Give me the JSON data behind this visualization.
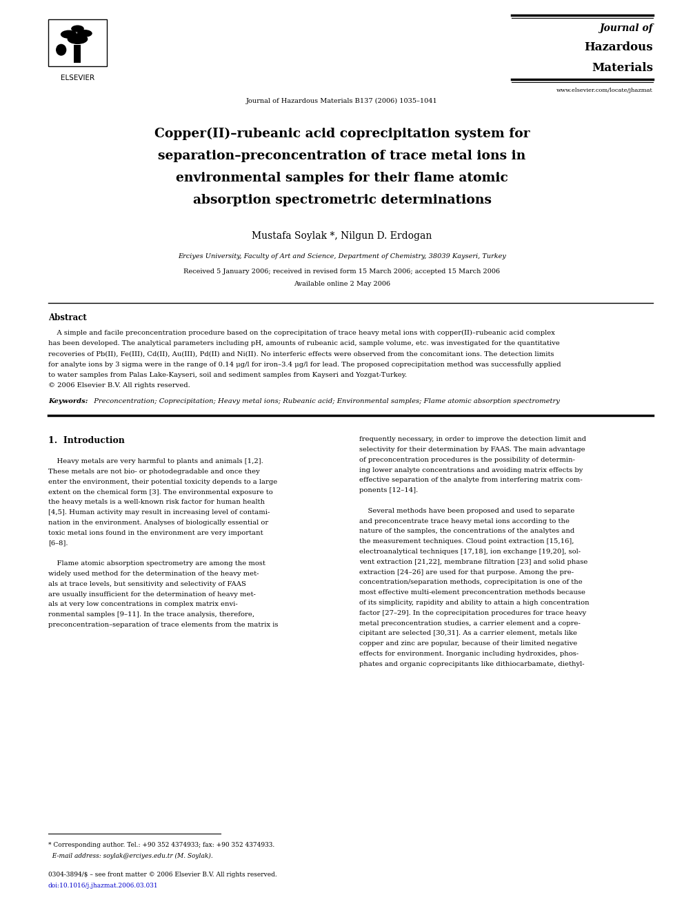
{
  "background_color": "#ffffff",
  "page_width": 9.92,
  "page_height": 13.23,
  "header": {
    "elsevier_text": "ELSEVIER",
    "journal_center_text": "Journal of Hazardous Materials B137 (2006) 1035–1041",
    "journal_right_line1": "Journal of",
    "journal_right_line2": "Hazardous",
    "journal_right_line3": "Materials",
    "journal_right_url": "www.elsevier.com/locate/jhazmat"
  },
  "title_line1": "Copper(II)–rubeanic acid coprecipitation system for",
  "title_line2": "separation–preconcentration of trace metal ions in",
  "title_line3": "environmental samples for their flame atomic",
  "title_line4": "absorption spectrometric determinations",
  "authors": "Mustafa Soylak *, Nilgun D. Erdogan",
  "affiliation": "Erciyes University, Faculty of Art and Science, Department of Chemistry, 38039 Kayseri, Turkey",
  "received": "Received 5 January 2006; received in revised form 15 March 2006; accepted 15 March 2006",
  "available": "Available online 2 May 2006",
  "abstract_heading": "Abstract",
  "abstract_lines": [
    "    A simple and facile preconcentration procedure based on the coprecipitation of trace heavy metal ions with copper(II)–rubeanic acid complex",
    "has been developed. The analytical parameters including pH, amounts of rubeanic acid, sample volume, etc. was investigated for the quantitative",
    "recoveries of Pb(II), Fe(III), Cd(II), Au(III), Pd(II) and Ni(II). No interferic effects were observed from the concomitant ions. The detection limits",
    "for analyte ions by 3 sigma were in the range of 0.14 μg/l for iron–3.4 μg/l for lead. The proposed coprecipitation method was successfully applied",
    "to water samples from Palas Lake-Kayseri, soil and sediment samples from Kayseri and Yozgat-Turkey.",
    "© 2006 Elsevier B.V. All rights reserved."
  ],
  "keywords_label": "Keywords:",
  "keywords_text": "  Preconcentration; Coprecipitation; Heavy metal ions; Rubeanic acid; Environmental samples; Flame atomic absorption spectrometry",
  "section1_heading": "1.  Introduction",
  "left_col_lines": [
    "    Heavy metals are very harmful to plants and animals [1,2].",
    "These metals are not bio- or photodegradable and once they",
    "enter the environment, their potential toxicity depends to a large",
    "extent on the chemical form [3]. The environmental exposure to",
    "the heavy metals is a well-known risk factor for human health",
    "[4,5]. Human activity may result in increasing level of contami-",
    "nation in the environment. Analyses of biologically essential or",
    "toxic metal ions found in the environment are very important",
    "[6–8].",
    "",
    "    Flame atomic absorption spectrometry are among the most",
    "widely used method for the determination of the heavy met-",
    "als at trace levels, but sensitivity and selectivity of FAAS",
    "are usually insufficient for the determination of heavy met-",
    "als at very low concentrations in complex matrix envi-",
    "ronmental samples [9–11]. In the trace analysis, therefore,",
    "preconcentration–separation of trace elements from the matrix is"
  ],
  "right_col_lines": [
    "frequently necessary, in order to improve the detection limit and",
    "selectivity for their determination by FAAS. The main advantage",
    "of preconcentration procedures is the possibility of determin-",
    "ing lower analyte concentrations and avoiding matrix effects by",
    "effective separation of the analyte from interfering matrix com-",
    "ponents [12–14].",
    "",
    "    Several methods have been proposed and used to separate",
    "and preconcentrate trace heavy metal ions according to the",
    "nature of the samples, the concentrations of the analytes and",
    "the measurement techniques. Cloud point extraction [15,16],",
    "electroanalytical techniques [17,18], ion exchange [19,20], sol-",
    "vent extraction [21,22], membrane filtration [23] and solid phase",
    "extraction [24–26] are used for that purpose. Among the pre-",
    "concentration/separation methods, coprecipitation is one of the",
    "most effective multi-element preconcentration methods because",
    "of its simplicity, rapidity and ability to attain a high concentration",
    "factor [27–29]. In the coprecipitation procedures for trace heavy",
    "metal preconcentration studies, a carrier element and a copre-",
    "cipitant are selected [30,31]. As a carrier element, metals like",
    "copper and zinc are popular, because of their limited negative",
    "effects for environment. Inorganic including hydroxides, phos-",
    "phates and organic coprecipitants like dithiocarbamate, diethyl-"
  ],
  "footnote_line1": "* Corresponding author. Tel.: +90 352 4374933; fax: +90 352 4374933.",
  "footnote_line2": "  E-mail address: soylak@erciyes.edu.tr (M. Soylak).",
  "footer_line1": "0304-3894/$ – see front matter © 2006 Elsevier B.V. All rights reserved.",
  "footer_line2": "doi:10.1016/j.jhazmat.2006.03.031",
  "footer_color": "#0000cc"
}
